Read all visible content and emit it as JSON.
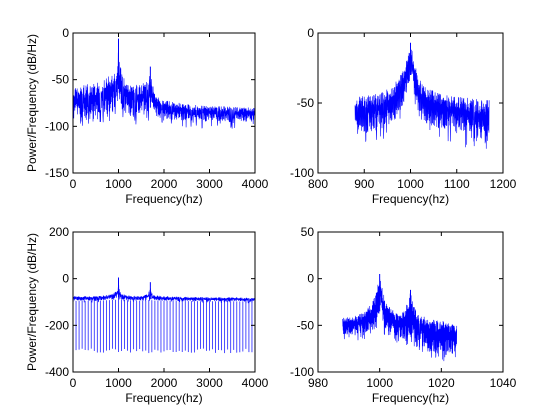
{
  "figure": {
    "background": "#ffffff",
    "trace_color": "#0000ff",
    "frame_color": "#000000"
  },
  "chart_data": [
    {
      "type": "line",
      "title": "",
      "xlabel": "Frequency(hz)",
      "ylabel": "Power/Frequency (dB/Hz)",
      "xlim": [
        0,
        4000
      ],
      "ylim": [
        -150,
        0
      ],
      "xticks": [
        0,
        1000,
        2000,
        3000,
        4000
      ],
      "yticks": [
        -150,
        -100,
        -50,
        0
      ],
      "grid": false,
      "series": [
        {
          "x": [
            0,
            150,
            300,
            450,
            600,
            750,
            850,
            920,
            960,
            990,
            1000,
            1010,
            1040,
            1080,
            1150,
            1300,
            1450,
            1600,
            1660,
            1690,
            1700,
            1710,
            1740,
            1800,
            2000,
            2500,
            3000,
            3500,
            4000
          ],
          "upper": [
            -58,
            -57,
            -55,
            -53,
            -50,
            -46,
            -42,
            -38,
            -34,
            -28,
            -6,
            -28,
            -36,
            -42,
            -48,
            -54,
            -56,
            -52,
            -46,
            -40,
            -36,
            -42,
            -52,
            -66,
            -72,
            -76,
            -78,
            -79,
            -80
          ],
          "lower": [
            -95,
            -95,
            -95,
            -95,
            -92,
            -88,
            -85,
            -82,
            -78,
            -70,
            -60,
            -70,
            -78,
            -82,
            -86,
            -90,
            -92,
            -90,
            -86,
            -82,
            -80,
            -84,
            -88,
            -90,
            -92,
            -94,
            -95,
            -95,
            -95
          ]
        }
      ]
    },
    {
      "type": "line",
      "title": "",
      "xlabel": "Frequency(hz)",
      "ylabel": "",
      "xlim": [
        800,
        1200
      ],
      "ylim": [
        -100,
        0
      ],
      "xticks": [
        800,
        900,
        1000,
        1100,
        1200
      ],
      "yticks": [
        -100,
        -50,
        0
      ],
      "grid": false,
      "series": [
        {
          "x": [
            880,
            900,
            920,
            940,
            960,
            975,
            985,
            992,
            997,
            1000,
            1003,
            1008,
            1015,
            1025,
            1040,
            1060,
            1080,
            1100,
            1120,
            1140,
            1160,
            1170
          ],
          "upper": [
            -46,
            -45,
            -44,
            -42,
            -38,
            -32,
            -25,
            -18,
            -12,
            -7,
            -12,
            -20,
            -30,
            -36,
            -40,
            -42,
            -44,
            -45,
            -46,
            -47,
            -48,
            -48
          ],
          "lower": [
            -70,
            -72,
            -70,
            -68,
            -64,
            -58,
            -50,
            -42,
            -35,
            -30,
            -35,
            -45,
            -55,
            -62,
            -66,
            -68,
            -70,
            -72,
            -74,
            -76,
            -78,
            -78
          ]
        }
      ]
    },
    {
      "type": "line",
      "title": "",
      "xlabel": "Frequency(hz)",
      "ylabel": "Power/Frequency (dB/Hz)",
      "xlim": [
        0,
        4000
      ],
      "ylim": [
        -400,
        200
      ],
      "xticks": [
        0,
        1000,
        2000,
        3000,
        4000
      ],
      "yticks": [
        -400,
        -200,
        0,
        200
      ],
      "grid": false,
      "series": [
        {
          "x": [
            0,
            500,
            800,
            950,
            990,
            1000,
            1010,
            1050,
            1200,
            1500,
            1650,
            1690,
            1700,
            1710,
            1750,
            2000,
            2500,
            3000,
            3500,
            4000
          ],
          "upper": [
            -75,
            -75,
            -68,
            -55,
            -35,
            5,
            -35,
            -60,
            -72,
            -75,
            -65,
            -40,
            -15,
            -40,
            -70,
            -75,
            -78,
            -80,
            -80,
            -82
          ],
          "lower": [
            -95,
            -95,
            -92,
            -90,
            -85,
            -80,
            -85,
            -90,
            -93,
            -95,
            -93,
            -90,
            -88,
            -90,
            -93,
            -95,
            -96,
            -97,
            -97,
            -98
          ],
          "spike_floor": -300,
          "spike_count": 60
        }
      ]
    },
    {
      "type": "line",
      "title": "",
      "xlabel": "Frequency(hz)",
      "ylabel": "",
      "xlim": [
        980,
        1040
      ],
      "ylim": [
        -100,
        50
      ],
      "xticks": [
        980,
        1000,
        1020,
        1040
      ],
      "yticks": [
        -100,
        -50,
        0,
        50
      ],
      "grid": false,
      "series": [
        {
          "x": [
            988,
            992,
            995,
            997,
            998.5,
            999.5,
            1000,
            1000.5,
            1001.5,
            1003,
            1006,
            1008,
            1009.5,
            1010,
            1010.5,
            1012,
            1015,
            1018,
            1022,
            1025
          ],
          "upper": [
            -42,
            -40,
            -35,
            -28,
            -18,
            -5,
            5,
            -5,
            -20,
            -30,
            -38,
            -35,
            -20,
            -12,
            -22,
            -36,
            -42,
            -44,
            -46,
            -48
          ],
          "lower": [
            -60,
            -60,
            -58,
            -55,
            -50,
            -40,
            -35,
            -40,
            -52,
            -58,
            -62,
            -65,
            -62,
            -60,
            -65,
            -70,
            -75,
            -80,
            -82,
            -82
          ]
        }
      ]
    }
  ]
}
